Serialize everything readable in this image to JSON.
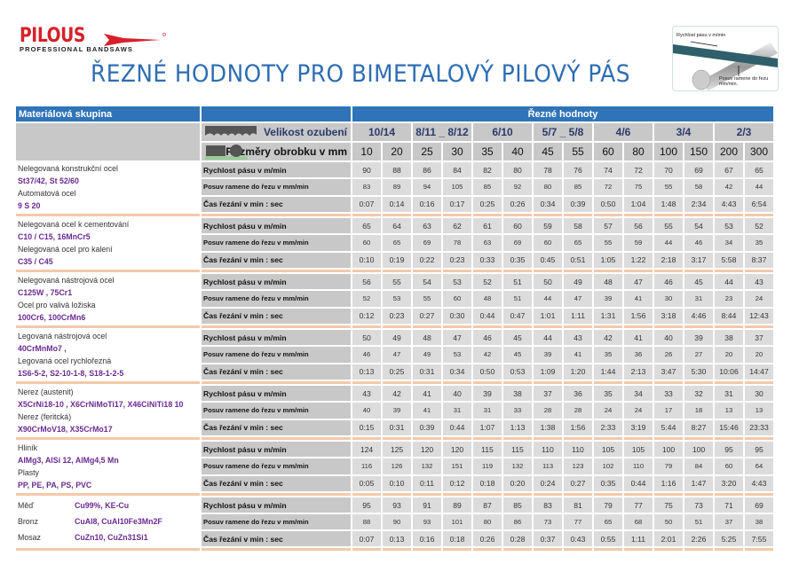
{
  "brand": {
    "name": "PILOUS",
    "tagline": "PROFESSIONAL BANDSAWS",
    "reg": "®",
    "color": "#d7202a"
  },
  "title": "ŘEZNÉ HODNOTY PRO BIMETALOVÝ PILOVÝ PÁS",
  "illustration": {
    "speed_label": "Rychlost pásu v m/min",
    "feed_label": "Posuv ramene do řezu mm/min."
  },
  "table": {
    "header_material": "Materiálová skupina",
    "header_values": "Řezné hodnoty",
    "tooth_label": "Velikost ozubení",
    "size_label": "Rozměry obrobku v mm",
    "tooth_sizes": [
      "10/14",
      "8/11 _ 8/12",
      "6/10",
      "5/7 _ 5/8",
      "4/6",
      "3/4",
      "2/3"
    ],
    "dimensions": [
      "10",
      "20",
      "25",
      "30",
      "35",
      "40",
      "45",
      "55",
      "60",
      "80",
      "100",
      "150",
      "200",
      "300"
    ],
    "row_labels": [
      "Rychlost  pásu v m/min",
      "Posuv ramene do řezu v mm/min",
      "Čas řezání v min : sec"
    ],
    "groups": [
      {
        "material": [
          {
            "t": "Nelegovaná konstrukční ocel",
            "p": false
          },
          {
            "t": "St37/42, St 52/60",
            "p": true
          },
          {
            "t": "Automatová ocel",
            "p": false
          },
          {
            "t": "9 S 20",
            "p": true
          }
        ],
        "rows": [
          [
            "90",
            "88",
            "86",
            "84",
            "82",
            "80",
            "78",
            "76",
            "74",
            "72",
            "70",
            "69",
            "67",
            "65"
          ],
          [
            "83",
            "89",
            "94",
            "105",
            "85",
            "92",
            "80",
            "85",
            "72",
            "75",
            "55",
            "58",
            "42",
            "44"
          ],
          [
            "0:07",
            "0:14",
            "0:16",
            "0:17",
            "0:25",
            "0:26",
            "0:34",
            "0:39",
            "0:50",
            "1:04",
            "1:48",
            "2:34",
            "4:43",
            "6:54"
          ]
        ]
      },
      {
        "material": [
          {
            "t": "Nelegovaná ocel k cementování",
            "p": false
          },
          {
            "t": "C10 / C15,  16MnCr5",
            "p": true
          },
          {
            "t": "Nelegovaná  ocel pro kalení",
            "p": false
          },
          {
            "t": "C35 / C45",
            "p": true
          }
        ],
        "rows": [
          [
            "65",
            "64",
            "63",
            "62",
            "61",
            "60",
            "59",
            "58",
            "57",
            "56",
            "55",
            "54",
            "53",
            "52"
          ],
          [
            "60",
            "65",
            "69",
            "78",
            "63",
            "69",
            "60",
            "65",
            "55",
            "59",
            "44",
            "46",
            "34",
            "35"
          ],
          [
            "0:10",
            "0:19",
            "0:22",
            "0:23",
            "0:33",
            "0:35",
            "0:45",
            "0:51",
            "1:05",
            "1:22",
            "2:18",
            "3:17",
            "5:58",
            "8:37"
          ]
        ]
      },
      {
        "material": [
          {
            "t": "Nelegovaná nástrojová ocel",
            "p": false
          },
          {
            "t": "C125W , 75Cr1",
            "p": true
          },
          {
            "t": "Ocel pro valivá ložiska",
            "p": false
          },
          {
            "t": "100Cr6, 100CrMn6",
            "p": true
          }
        ],
        "rows": [
          [
            "56",
            "55",
            "54",
            "53",
            "52",
            "51",
            "50",
            "49",
            "48",
            "47",
            "46",
            "45",
            "44",
            "43"
          ],
          [
            "52",
            "53",
            "55",
            "60",
            "48",
            "51",
            "44",
            "47",
            "39",
            "41",
            "30",
            "31",
            "23",
            "24"
          ],
          [
            "0:12",
            "0:23",
            "0:27",
            "0:30",
            "0:44",
            "0:47",
            "1:01",
            "1:11",
            "1:31",
            "1:56",
            "3:18",
            "4:46",
            "8:44",
            "12:43"
          ]
        ]
      },
      {
        "material": [
          {
            "t": "Legovaná nástrojová ocel",
            "p": false
          },
          {
            "t": "40CrMnMo7 ,",
            "p": true
          },
          {
            "t": "Legovaná ocel  rychlořezná",
            "p": false
          },
          {
            "t": "1S6-5-2, S2-10-1-8,  S18-1-2-5",
            "p": true
          }
        ],
        "rows": [
          [
            "50",
            "49",
            "48",
            "47",
            "46",
            "45",
            "44",
            "43",
            "42",
            "41",
            "40",
            "39",
            "38",
            "37"
          ],
          [
            "46",
            "47",
            "49",
            "53",
            "42",
            "45",
            "39",
            "41",
            "35",
            "36",
            "26",
            "27",
            "20",
            "20"
          ],
          [
            "0:13",
            "0:25",
            "0:31",
            "0:34",
            "0:50",
            "0:53",
            "1:09",
            "1:20",
            "1:44",
            "2:13",
            "3:47",
            "5:30",
            "10:06",
            "14:47"
          ]
        ]
      },
      {
        "material": [
          {
            "t": "Nerez (austenit)",
            "p": false
          },
          {
            "t": "X5CrNi18-10 , X6CrNiMoTi17, X46CiNiTi18 10",
            "p": true
          },
          {
            "t": "Nerez (feritcká)",
            "p": false
          },
          {
            "t": "X90CrMoV18, X35CrMo17",
            "p": true
          }
        ],
        "rows": [
          [
            "43",
            "42",
            "41",
            "40",
            "39",
            "38",
            "37",
            "36",
            "35",
            "34",
            "33",
            "32",
            "31",
            "30"
          ],
          [
            "40",
            "39",
            "41",
            "31",
            "31",
            "33",
            "28",
            "28",
            "24",
            "24",
            "17",
            "18",
            "13",
            "13"
          ],
          [
            "0:15",
            "0:31",
            "0:39",
            "0:44",
            "1:07",
            "1:13",
            "1:38",
            "1:56",
            "2:33",
            "3:19",
            "5:44",
            "8:27",
            "15:46",
            "23:33"
          ]
        ]
      },
      {
        "material": [
          {
            "t": "Hliník",
            "p": false
          },
          {
            "t": "AlMg3, AlSi 12, AlMg4,5 Mn",
            "p": true
          },
          {
            "t": "Plasty",
            "p": false
          },
          {
            "t": "PP, PE, PA, PS, PVC",
            "p": true
          }
        ],
        "rows": [
          [
            "124",
            "125",
            "120",
            "120",
            "115",
            "115",
            "110",
            "110",
            "105",
            "105",
            "100",
            "100",
            "95",
            "95"
          ],
          [
            "116",
            "126",
            "132",
            "151",
            "119",
            "132",
            "113",
            "123",
            "102",
            "110",
            "79",
            "84",
            "60",
            "64"
          ],
          [
            "0:05",
            "0:10",
            "0:11",
            "0:12",
            "0:18",
            "0:20",
            "0:24",
            "0:27",
            "0:35",
            "0:44",
            "1:16",
            "1:47",
            "3:20",
            "4:43"
          ]
        ]
      },
      {
        "material_pairs": [
          [
            "Měď",
            "Cu99%, KE-Cu"
          ],
          [
            "Bronz",
            "CuAl8, CuAl10Fe3Mn2F"
          ],
          [
            "Mosaz",
            "CuZn10, CuZn31Si1"
          ]
        ],
        "rows": [
          [
            "95",
            "93",
            "91",
            "89",
            "87",
            "85",
            "83",
            "81",
            "79",
            "77",
            "75",
            "73",
            "71",
            "69"
          ],
          [
            "88",
            "90",
            "93",
            "101",
            "80",
            "86",
            "73",
            "77",
            "65",
            "68",
            "50",
            "51",
            "37",
            "38"
          ],
          [
            "0:07",
            "0:13",
            "0:16",
            "0:18",
            "0:26",
            "0:28",
            "0:37",
            "0:43",
            "0:55",
            "1:11",
            "2:01",
            "2:26",
            "5:25",
            "7:55"
          ]
        ]
      }
    ]
  },
  "colors": {
    "header_blue": "#2f74b8",
    "separator": "#f3c9a9",
    "alloy_purple": "#6a2a92",
    "title_blue": "#2d6db3"
  }
}
